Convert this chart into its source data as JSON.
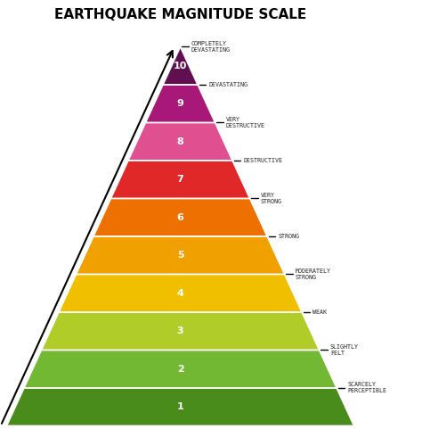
{
  "title": "EARTHQUAKE MAGNITUDE SCALE",
  "background_color": "#ffffff",
  "levels": [
    {
      "num": "1",
      "label": "SCARCELY\nPERCEPTIBLE",
      "color": "#4a8c1c"
    },
    {
      "num": "2",
      "label": "SLIGHTLY\nFELT",
      "color": "#72b832"
    },
    {
      "num": "3",
      "label": "WEAK",
      "color": "#b0cc28"
    },
    {
      "num": "4",
      "label": "MODERATELY\nSTRONG",
      "color": "#f0c000"
    },
    {
      "num": "5",
      "label": "STRONG",
      "color": "#f0a000"
    },
    {
      "num": "6",
      "label": "VERY\nSTRONG",
      "color": "#ee7000"
    },
    {
      "num": "7",
      "label": "DESTRUCTIVE",
      "color": "#e02828"
    },
    {
      "num": "8",
      "label": "VERY\nDESTRUCTIVE",
      "color": "#e05090"
    },
    {
      "num": "9",
      "label": "DEVASTATING",
      "color": "#a81878"
    },
    {
      "num": "10",
      "label": "COMPLETELY\nDEVASTATING",
      "color": "#601050"
    }
  ],
  "fig_width": 4.74,
  "fig_height": 5.0,
  "dpi": 100
}
